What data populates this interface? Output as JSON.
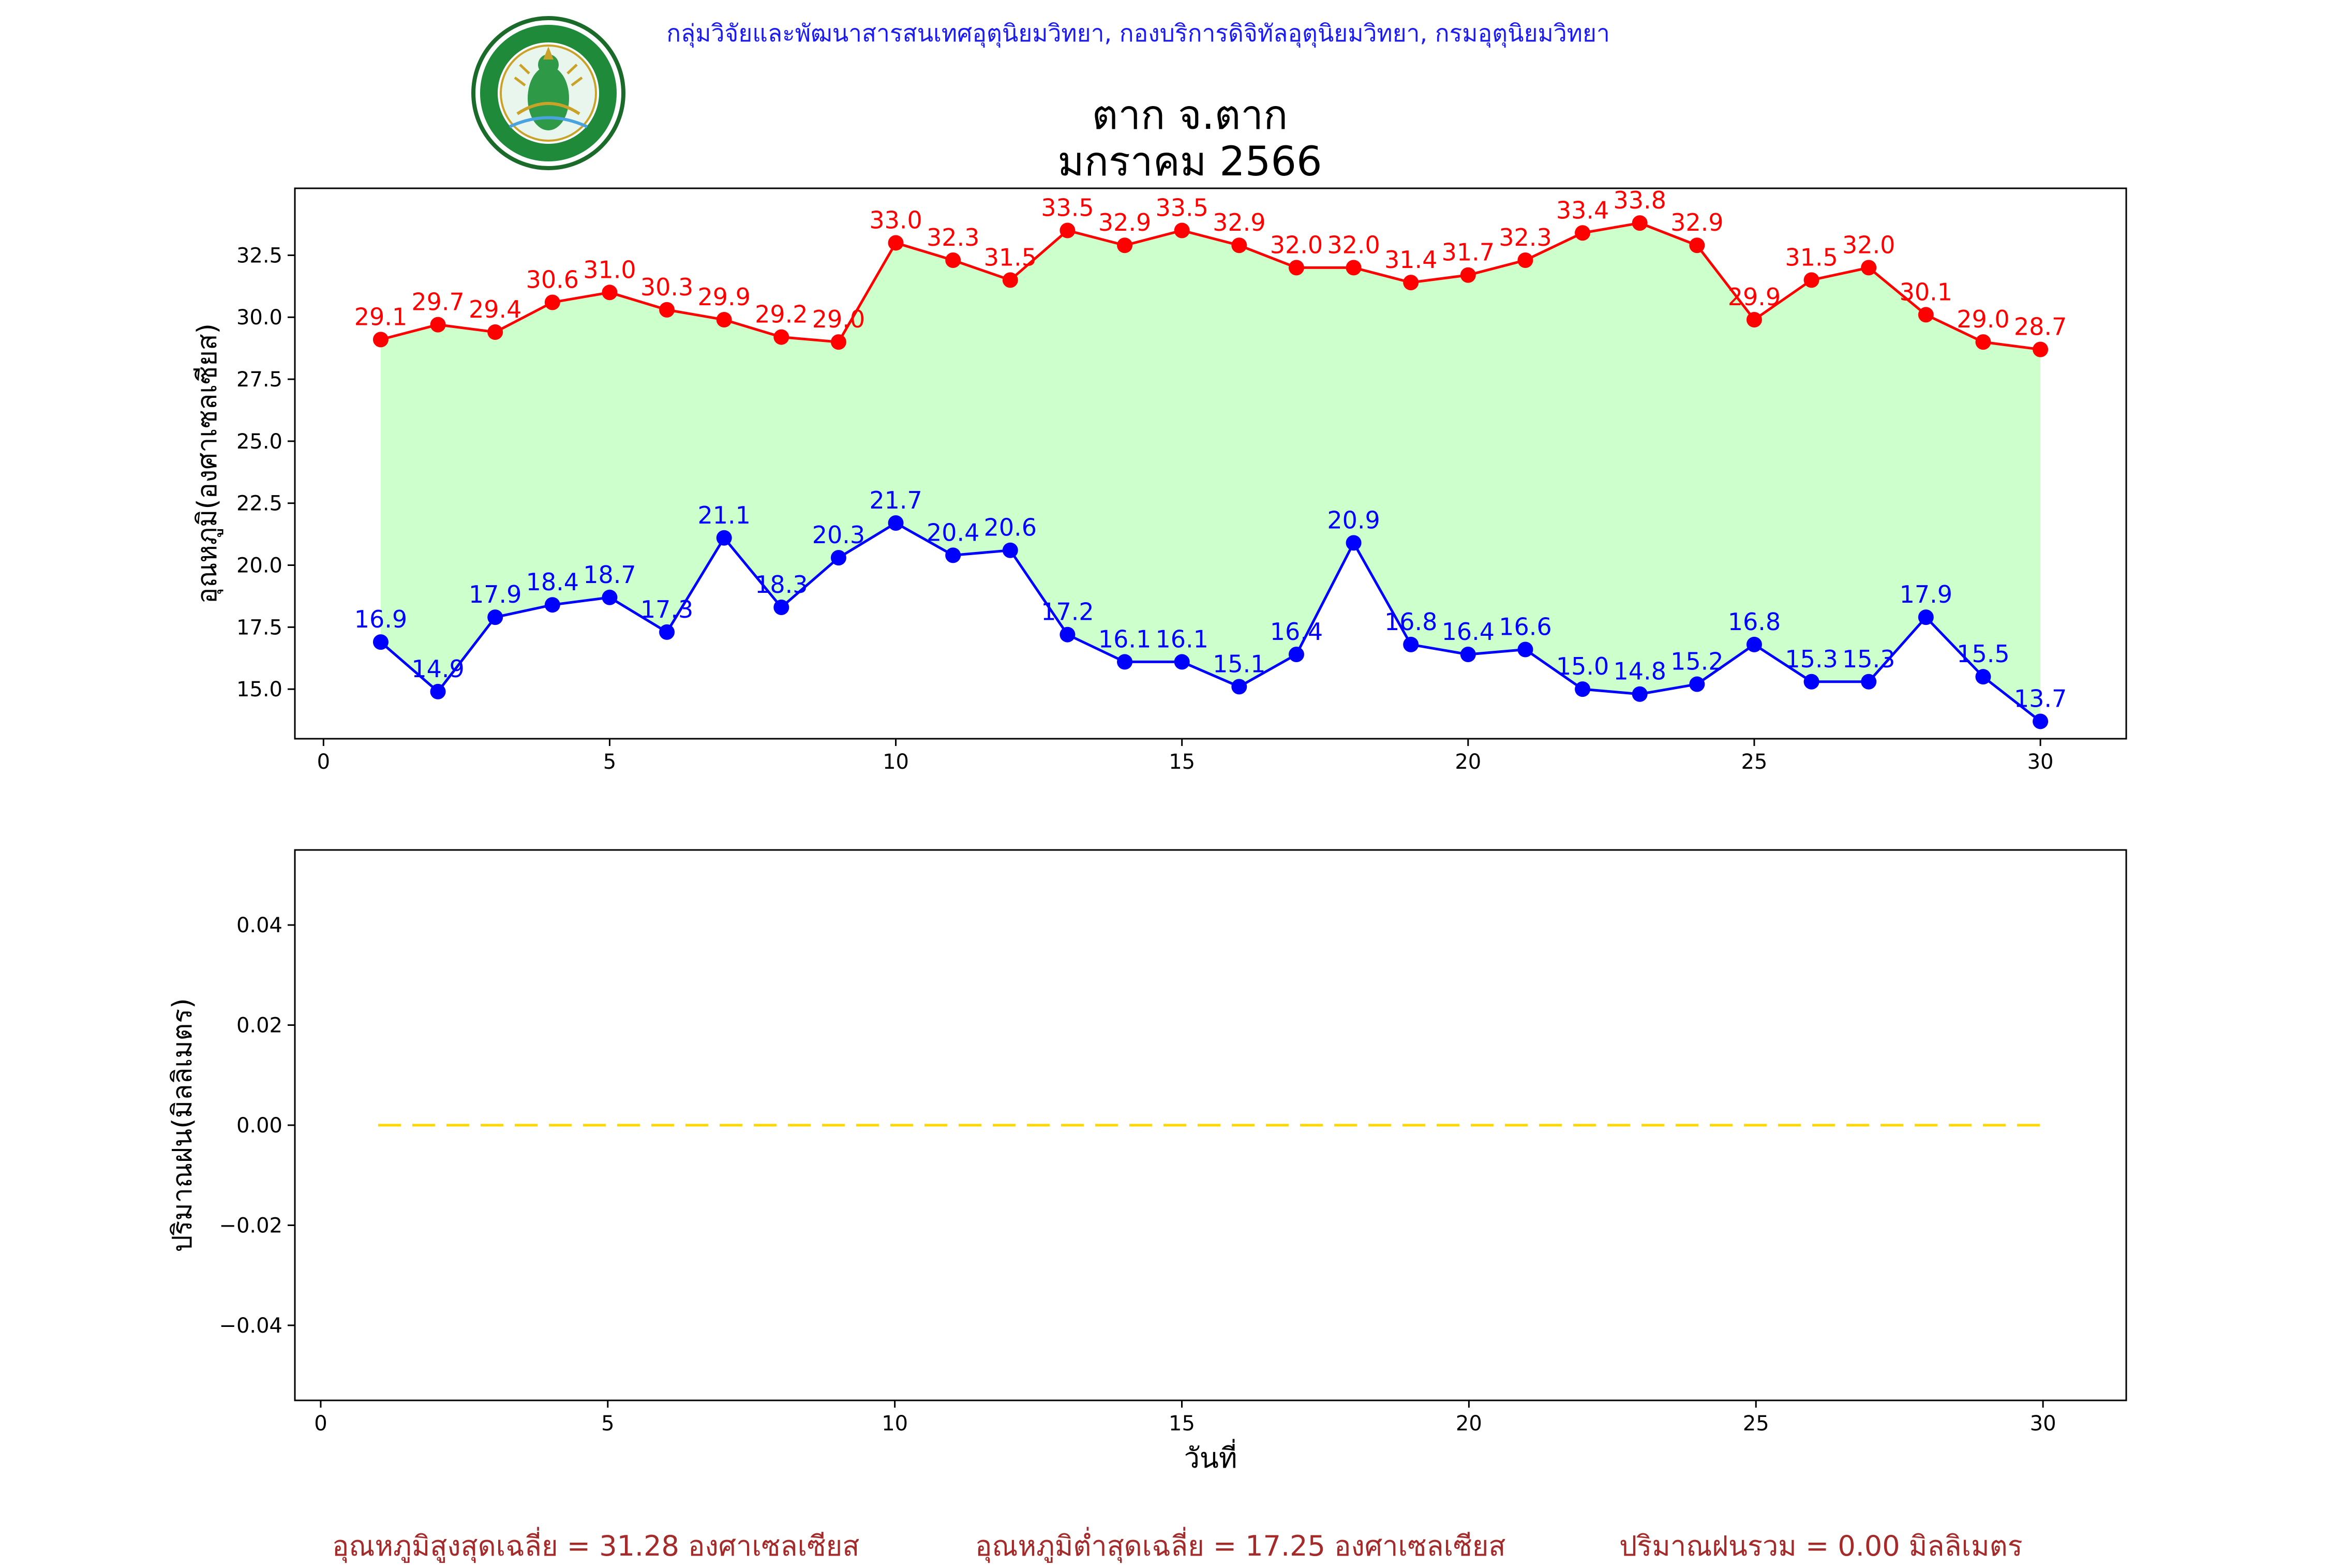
{
  "header": {
    "org_line": "กลุ่มวิจัยและพัฒนาสารสนเทศอุตุนิยมวิทยา, กองบริการดิจิทัลอุตุนิยมวิทยา, กรมอุตุนิยมวิทยา",
    "logo_text_top": "กรมอุตุนิยมวิทยา",
    "logo_text_bottom": "METEOROLOGICAL DEPARTMENT"
  },
  "title": {
    "station": "ตาก จ.ตาก",
    "period": "มกราคม 2566"
  },
  "summary": {
    "avg_max": "อุณหภูมิสูงสุดเฉลี่ย = 31.28 องศาเซลเซียส",
    "avg_min": "อุณหภูมิต่ำสุดเฉลี่ย = 17.25 องศาเซลเซียส",
    "total_rain": "ปริมาณฝนรวม = 0.00 มิลลิเมตร"
  },
  "chart_data": [
    {
      "type": "line",
      "ylabel": "อุณหภูมิ(องศาเซลเซียส)",
      "xlabel": "",
      "x": [
        1,
        2,
        3,
        4,
        5,
        6,
        7,
        8,
        9,
        10,
        11,
        12,
        13,
        14,
        15,
        16,
        17,
        18,
        19,
        20,
        21,
        22,
        23,
        24,
        25,
        26,
        27,
        28,
        29,
        30
      ],
      "xlim": [
        -0.5,
        31.5
      ],
      "ylim": [
        13.0,
        35.2
      ],
      "xticks": [
        0,
        5,
        10,
        15,
        20,
        25,
        30
      ],
      "yticks": [
        15.0,
        17.5,
        20.0,
        22.5,
        25.0,
        27.5,
        30.0,
        32.5
      ],
      "fill_between_color": "#ccffcc",
      "series": [
        {
          "color": "#ff0000",
          "values": [
            29.1,
            29.7,
            29.4,
            30.6,
            31.0,
            30.3,
            29.9,
            29.2,
            29.0,
            33.0,
            32.3,
            31.5,
            33.5,
            32.9,
            33.5,
            32.9,
            32.0,
            32.0,
            31.4,
            31.7,
            32.3,
            33.4,
            33.8,
            32.9,
            29.9,
            31.5,
            32.0,
            30.1,
            29.0,
            28.7
          ]
        },
        {
          "color": "#0000ff",
          "values": [
            16.9,
            14.9,
            17.9,
            18.4,
            18.7,
            17.3,
            21.1,
            18.3,
            20.3,
            21.7,
            20.4,
            20.6,
            17.2,
            16.1,
            16.1,
            15.1,
            16.4,
            20.9,
            16.8,
            16.4,
            16.6,
            15.0,
            14.8,
            15.2,
            16.8,
            15.3,
            15.3,
            17.9,
            15.5,
            13.7
          ]
        }
      ]
    },
    {
      "type": "line",
      "ylabel": "ปริมาณฝน(มิลลิเมตร)",
      "xlabel": "วันที่",
      "x": [
        1,
        2,
        3,
        4,
        5,
        6,
        7,
        8,
        9,
        10,
        11,
        12,
        13,
        14,
        15,
        16,
        17,
        18,
        19,
        20,
        21,
        22,
        23,
        24,
        25,
        26,
        27,
        28,
        29,
        30
      ],
      "xlim": [
        -0.45,
        31.45
      ],
      "ylim": [
        -0.055,
        0.055
      ],
      "xticks": [
        0,
        5,
        10,
        15,
        20,
        25,
        30
      ],
      "yticks": [
        -0.04,
        -0.02,
        0.0,
        0.02,
        0.04
      ],
      "ytick_labels": [
        "−0.04",
        "−0.02",
        "0.00",
        "0.02",
        "0.04"
      ],
      "series": [
        {
          "color": "#ffd700",
          "style": "dashed",
          "values": [
            0,
            0,
            0,
            0,
            0,
            0,
            0,
            0,
            0,
            0,
            0,
            0,
            0,
            0,
            0,
            0,
            0,
            0,
            0,
            0,
            0,
            0,
            0,
            0,
            0,
            0,
            0,
            0,
            0,
            0
          ]
        }
      ]
    }
  ]
}
